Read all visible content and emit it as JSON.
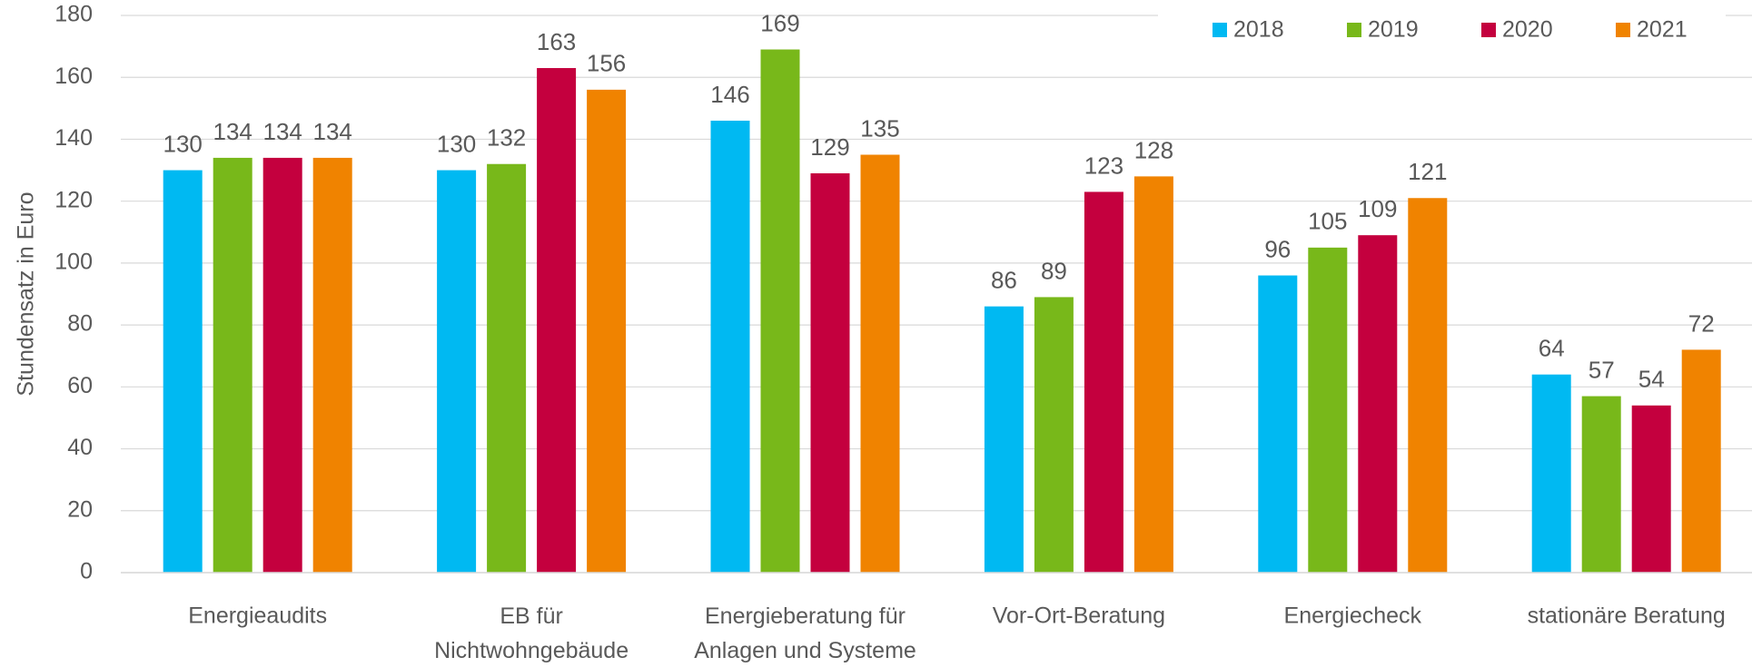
{
  "chart_data": {
    "type": "bar",
    "y_label": "Stundensatz in Euro",
    "categories": [
      "Energieaudits",
      "EB für Nichtwohngebäude",
      "Energieberatung für Anlagen und Systeme",
      "Vor-Ort-Beratung",
      "Energiecheck",
      "stationäre Beratung"
    ],
    "series": [
      {
        "name": "2018",
        "color": "#00b9f2",
        "values": [
          130,
          130,
          146,
          86,
          96,
          64
        ]
      },
      {
        "name": "2019",
        "color": "#78b81a",
        "values": [
          134,
          132,
          169,
          89,
          105,
          57
        ]
      },
      {
        "name": "2020",
        "color": "#c4003e",
        "values": [
          134,
          163,
          129,
          123,
          109,
          54
        ]
      },
      {
        "name": "2021",
        "color": "#f08300",
        "values": [
          134,
          156,
          135,
          128,
          121,
          72
        ]
      }
    ],
    "ylim": [
      0,
      180
    ],
    "yticks": [
      0,
      20,
      40,
      60,
      80,
      100,
      120,
      140,
      160,
      180
    ],
    "grid": true,
    "legend": "top-right"
  }
}
